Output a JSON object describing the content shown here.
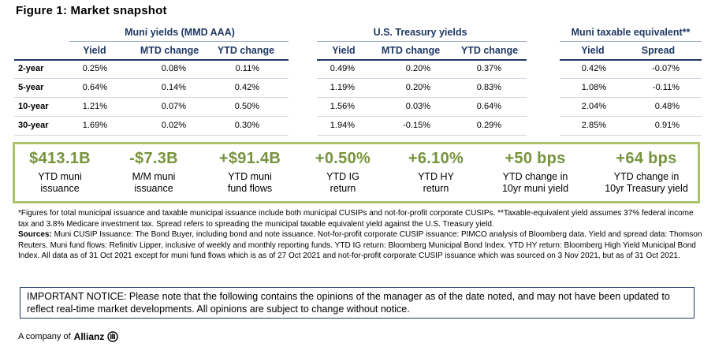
{
  "title": "Figure 1: Market snapshot",
  "groups": {
    "muni": "Muni yields (MMD AAA)",
    "treasury": "U.S. Treasury yields",
    "taxable": "Muni taxable equivalent**"
  },
  "headers": {
    "muni": [
      "Yield",
      "MTD change",
      "YTD change"
    ],
    "treasury": [
      "Yield",
      "MTD change",
      "YTD change"
    ],
    "taxable": [
      "Yield",
      "Spread"
    ]
  },
  "rows": [
    {
      "label": "2-year",
      "muni": [
        "0.25%",
        "0.08%",
        "0.11%"
      ],
      "treasury": [
        "0.49%",
        "0.20%",
        "0.37%"
      ],
      "taxable": [
        "0.42%",
        "-0.07%"
      ]
    },
    {
      "label": "5-year",
      "muni": [
        "0.64%",
        "0.14%",
        "0.42%"
      ],
      "treasury": [
        "1.19%",
        "0.20%",
        "0.83%"
      ],
      "taxable": [
        "1.08%",
        "-0.11%"
      ]
    },
    {
      "label": "10-year",
      "muni": [
        "1.21%",
        "0.07%",
        "0.50%"
      ],
      "treasury": [
        "1.56%",
        "0.03%",
        "0.64%"
      ],
      "taxable": [
        "2.04%",
        "0.48%"
      ]
    },
    {
      "label": "30-year",
      "muni": [
        "1.69%",
        "0.02%",
        "0.30%"
      ],
      "treasury": [
        "1.94%",
        "-0.15%",
        "0.29%"
      ],
      "taxable": [
        "2.85%",
        "0.91%"
      ]
    }
  ],
  "highlights": [
    {
      "value": "$413.1B",
      "label1": "YTD muni",
      "label2": "issuance"
    },
    {
      "value": "-$7.3B",
      "label1": "M/M muni",
      "label2": "issuance"
    },
    {
      "value": "+$91.4B",
      "label1": "YTD muni",
      "label2": "fund flows"
    },
    {
      "value": "+0.50%",
      "label1": "YTD IG",
      "label2": "return"
    },
    {
      "value": "+6.10%",
      "label1": "YTD HY",
      "label2": "return"
    },
    {
      "value": "+50 bps",
      "label1": "YTD change in",
      "label2": "10yr muni yield"
    },
    {
      "value": "+64 bps",
      "label1": "YTD change in",
      "label2": "10yr Treasury yield"
    }
  ],
  "footnotes": {
    "note": "*Figures for total municipal issuance and taxable municipal issuance include both municipal CUSIPs and not-for-profit corporate CUSIPs. **Taxable-equivalent yield assumes 37% federal income tax and 3.8% Medicare investment tax. Spread refers to spreading the municipal taxable equivalent yield against the U.S. Treasury yield.",
    "sources_label": "Sources:",
    "sources": " Muni CUSIP Issuance: The Bond Buyer, including bond and note issuance. Not-for-profit corporate CUSIP issuance: PIMCO analysis of Bloomberg data. Yield and spread data: Thomson Reuters. Muni fund flows: Refinitiv Lipper, inclusive of weekly and monthly reporting funds. YTD IG return: Bloomberg Municipal Bond Index. YTD HY return: Bloomberg High Yield Municipal Bond Index. All data as of 31 Oct 2021 except for muni fund flows which is as of 27 Oct 2021 and not-for-profit corporate CUSIP issuance which was sourced on 3 Nov 2021, but as of 31 Oct 2021."
  },
  "notice": "IMPORTANT NOTICE: Please note that the following contains the opinions of the manager as of the date noted, and may not have been updated to reflect real-time market developments. All opinions are subject to change without notice.",
  "brand": {
    "prefix": "A company of",
    "name": "Allianz",
    "icon": "allianz-logo-icon"
  },
  "colors": {
    "header": "#1f3864",
    "accent": "#77933c",
    "border": "#aac36a"
  }
}
